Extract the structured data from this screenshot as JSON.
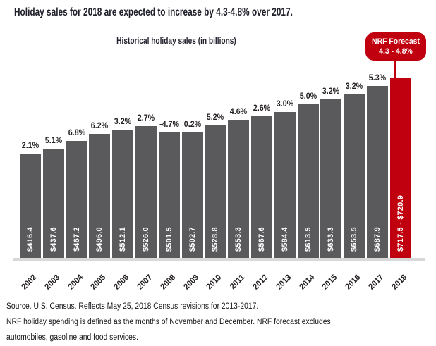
{
  "title": "Holiday sales for 2018 are expected to increase by 4.3-4.8% over 2017.",
  "chart_data": {
    "type": "bar",
    "title": "Historical holiday sales (in billions)",
    "categories": [
      "2002",
      "2003",
      "2004",
      "2005",
      "2006",
      "2007",
      "2008",
      "2009",
      "2010",
      "2011",
      "2012",
      "2013",
      "2014",
      "2015",
      "2016",
      "2017",
      "2018"
    ],
    "values": [
      416.4,
      437.6,
      467.2,
      496.0,
      512.1,
      526.0,
      501.5,
      502.7,
      528.8,
      553.3,
      567.6,
      584.4,
      613.5,
      633.3,
      653.5,
      687.9,
      719.2
    ],
    "bar_value_labels": [
      "$416.4",
      "$437.6",
      "$467.2",
      "$496.0",
      "$512.1",
      "$526.0",
      "$501.5",
      "$502.7",
      "$528.8",
      "$553.3",
      "$567.6",
      "$584.4",
      "$613.5",
      "$633.3",
      "$653.5",
      "$687.9",
      "$717.5 - $720.9"
    ],
    "pct_change_labels": [
      "2.1%",
      "5.1%",
      "6.8%",
      "6.2%",
      "3.2%",
      "2.7%",
      "-4.7%",
      "0.2%",
      "5.2%",
      "4.6%",
      "2.6%",
      "3.0%",
      "5.0%",
      "3.2%",
      "3.2%",
      "5.3%",
      ""
    ],
    "forecast_index": 16,
    "forecast_badge": {
      "line1": "NRF Forecast",
      "line2": "4.3 - 4.8%"
    },
    "colors": {
      "bar": "#5a5a5c",
      "forecast": "#c1000f",
      "axis_line": "#d8d8d8",
      "label_text": "#231f20",
      "bar_label_text": "#ffffff"
    },
    "ylim": [
      0,
      760
    ],
    "xlabel": "",
    "ylabel": "",
    "legend": false,
    "grid": false
  },
  "footer": {
    "lines": [
      "Source. U.S. Census. Reflects May 25, 2018 Census revisions for 2013-2017.",
      "NRF holiday spending is defined as the months of November and December. NRF forecast excludes",
      "automobiles, gasoline and food services."
    ]
  }
}
